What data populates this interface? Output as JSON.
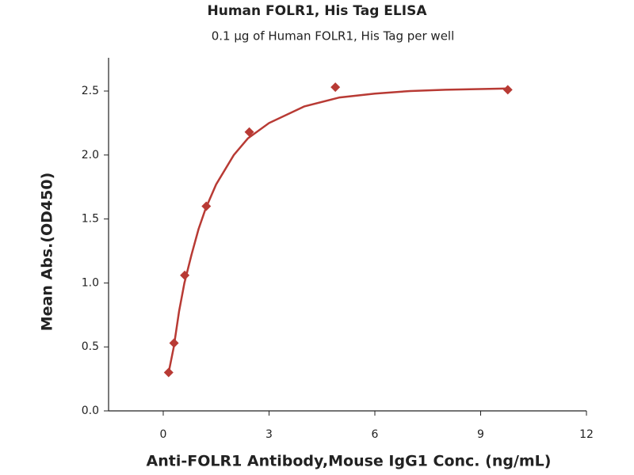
{
  "chart_data": {
    "type": "scatter",
    "title": "Human FOLR1, His Tag ELISA",
    "subtitle": "0.1 µg of Human FOLR1, His Tag per well",
    "x_label": "Anti-FOLR1 Antibody,Mouse IgG1 Conc. (ng/mL)",
    "y_label": "Mean Abs.(OD450)",
    "xlim": [
      -1.55,
      12
    ],
    "ylim": [
      0,
      2.76
    ],
    "xticks": [
      0,
      3,
      6,
      9,
      12
    ],
    "yticks": [
      {
        "value": 0,
        "label": "0.0"
      },
      0.5,
      {
        "value": 1,
        "label": "1.0"
      },
      1.5,
      {
        "value": 2,
        "label": "2.0"
      },
      2.5
    ],
    "series": [
      {
        "color": "#b83a34",
        "marker": "diamond",
        "x": [
          0.153,
          0.305,
          0.61,
          1.22,
          2.44,
          4.88,
          9.77
        ],
        "values": [
          0.3,
          0.53,
          1.06,
          1.6,
          2.18,
          2.53,
          2.51
        ]
      },
      {
        "color": "#b83a34",
        "marker": "line",
        "x": [
          0.153,
          0.3,
          0.45,
          0.6,
          0.8,
          1.0,
          1.2,
          1.5,
          2.0,
          2.4,
          3,
          4,
          5,
          6,
          7,
          8,
          9.77
        ],
        "values": [
          0.3,
          0.5,
          0.78,
          1.0,
          1.22,
          1.42,
          1.58,
          1.77,
          2.0,
          2.13,
          2.25,
          2.38,
          2.45,
          2.48,
          2.5,
          2.51,
          2.52
        ]
      }
    ]
  }
}
